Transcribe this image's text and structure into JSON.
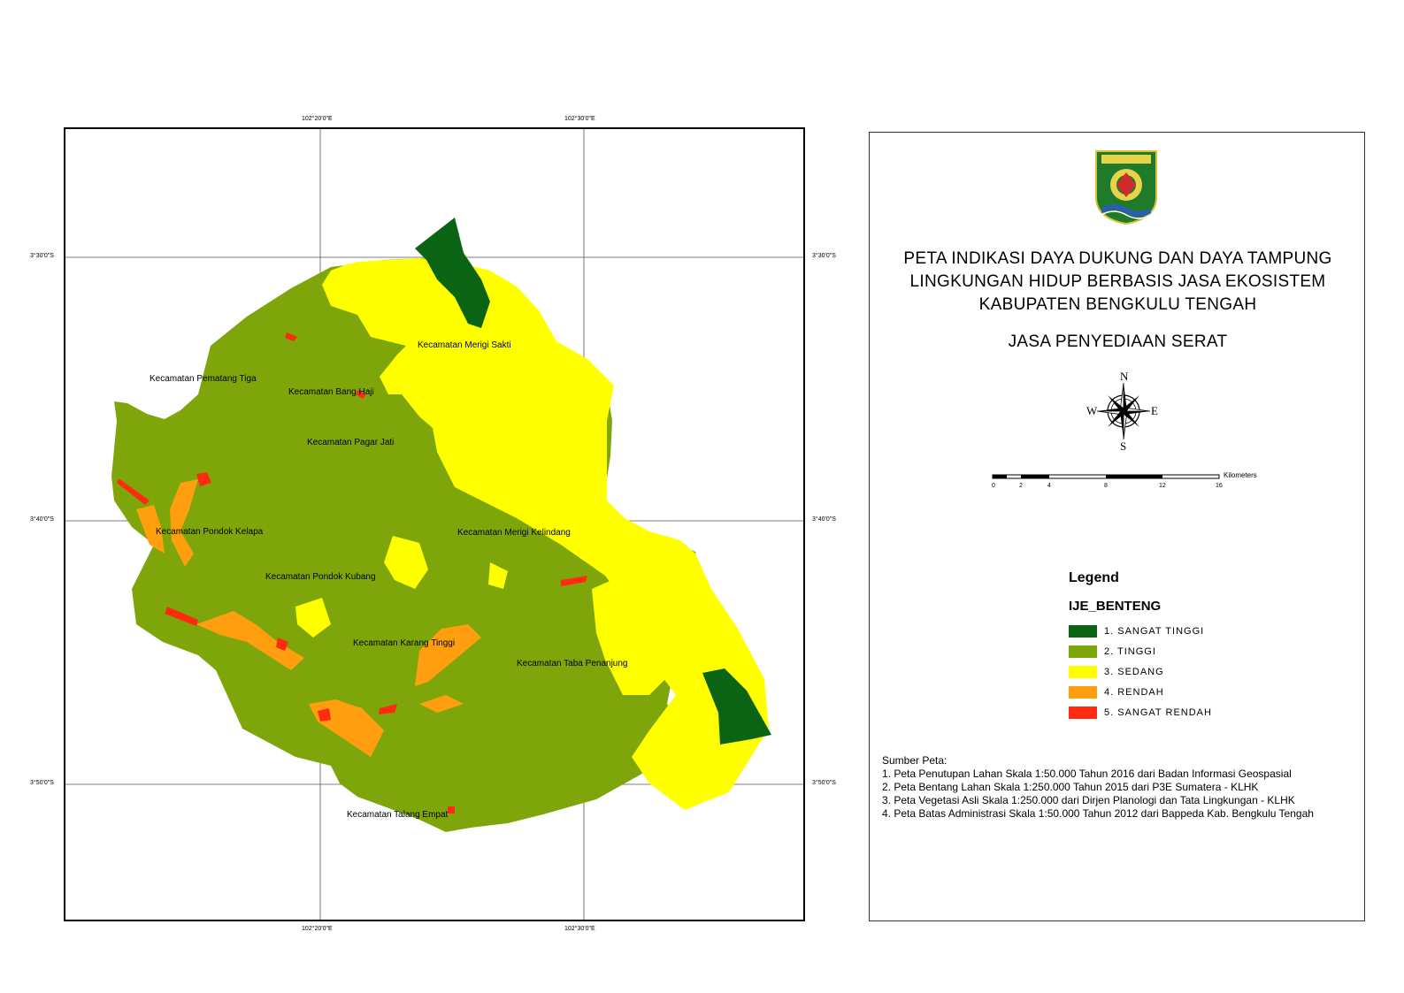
{
  "map": {
    "graticule": {
      "top_left": "102°20'0\"E",
      "top_right": "102°30'0\"E",
      "bottom_left": "102°20'0\"E",
      "bottom_right": "102°30'0\"E",
      "left_top": "3°30'0\"S",
      "left_mid": "3°40'0\"S",
      "left_bottom": "3°50'0\"S",
      "right_top": "3°30'0\"S",
      "right_mid": "3°40'0\"S",
      "right_bottom": "3°50'0\"S"
    },
    "districts": {
      "merigi_sakti": "Kecamatan Merigi Sakti",
      "pematang_tiga": "Kecamatan Pematang Tiga",
      "bang_haji": "Kecamatan Bang Haji",
      "pagar_jati": "Kecamatan Pagar Jati",
      "pondok_kelapa": "Kecamatan Pondok Kelapa",
      "merigi_kelindang": "Kecamatan Merigi Kelindang",
      "pondok_kubang": "Kecamatan Pondok Kubang",
      "karang_tinggi": "Kecamatan Karang Tinggi",
      "taba_penanjung": "Kecamatan Taba Penanjung",
      "talang_empat": "Kecamatan Talang Empat"
    },
    "class_colors": {
      "sangat_tinggi": "#0b6414",
      "tinggi": "#7ea60a",
      "sedang": "#ffff00",
      "rendah": "#ff9f10",
      "sangat_rendah": "#ff2a0f"
    }
  },
  "panel": {
    "title_lines": [
      "PETA INDIKASI DAYA DUKUNG DAN DAYA TAMPUNG",
      "LINGKUNGAN HIDUP BERBASIS JASA EKOSISTEM",
      "KABUPATEN BENGKULU TENGAH"
    ],
    "subtitle": "JASA PENYEDIAAN SERAT",
    "north_arrow": {
      "icon": "compass-rose-icon",
      "n": "N",
      "s": "S",
      "e": "E",
      "w": "W"
    },
    "scale_bar": {
      "unit": "Kilometers",
      "ticks": [
        "0",
        "2",
        "4",
        "8",
        "12",
        "16"
      ]
    },
    "legend": {
      "heading": "Legend",
      "layer": "IJE_BENTENG",
      "items": [
        {
          "label": "1. SANGAT TINGGI",
          "color": "#0b6414"
        },
        {
          "label": "2. TINGGI",
          "color": "#7ea60a"
        },
        {
          "label": "3. SEDANG",
          "color": "#ffff00"
        },
        {
          "label": "4. RENDAH",
          "color": "#ff9f10"
        },
        {
          "label": "5. SANGAT RENDAH",
          "color": "#ff2a0f"
        }
      ]
    },
    "sources": {
      "heading": "Sumber Peta:",
      "lines": [
        "1. Peta Penutupan Lahan Skala 1:50.000 Tahun 2016 dari Badan Informasi Geospasial",
        "2. Peta Bentang Lahan Skala 1:250.000 Tahun 2015 dari  P3E Sumatera - KLHK",
        "3. Peta Vegetasi Asli Skala 1:250.000 dari Dirjen Planologi dan Tata Lingkungan - KLHK",
        "4. Peta Batas Administrasi Skala 1:50.000 Tahun 2012 dari Bappeda Kab. Bengkulu Tengah"
      ]
    }
  }
}
